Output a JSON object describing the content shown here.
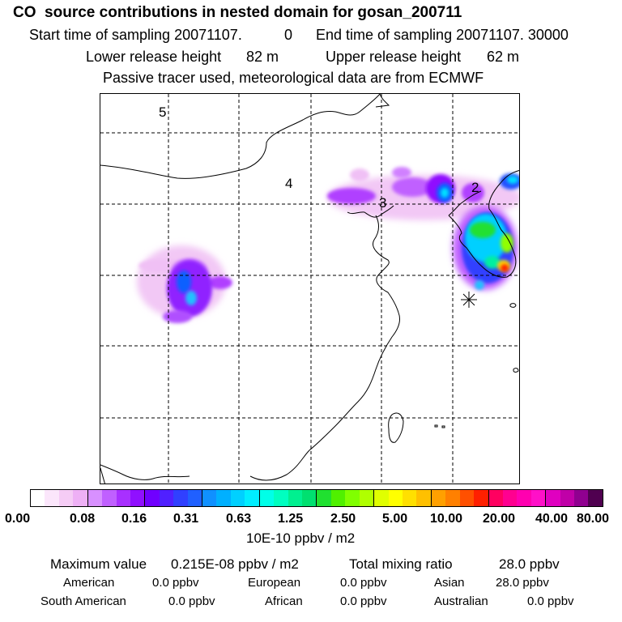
{
  "header": {
    "title": "CO  source contributions in nested domain for gosan_200711",
    "start_label": "Start time of sampling 20071107.",
    "start_value": "0",
    "end_label": "End time of sampling 20071107. 30000",
    "lower_label": "Lower release height",
    "lower_value": "82 m",
    "upper_label": "Upper release height",
    "upper_value": "62 m",
    "tracer_note": "Passive tracer used, meteorological data are from ECMWF"
  },
  "map": {
    "region_labels": [
      "5",
      "4",
      "3",
      "2"
    ],
    "receptor_marker": "gosan-asterisk"
  },
  "colorbar": {
    "ticks": [
      "0.00",
      "0.08",
      "0.16",
      "0.31",
      "0.63",
      "1.25",
      "2.50",
      "5.00",
      "10.00",
      "20.00",
      "40.00",
      "80.00"
    ],
    "units": "10E-10 ppbv / m2",
    "colors": [
      "#ffffff",
      "#fbe6fb",
      "#f5ccf5",
      "#eeb0f5",
      "#d890ff",
      "#c060ff",
      "#a830ff",
      "#9010ff",
      "#7000ff",
      "#5020ff",
      "#3040ff",
      "#2060ff",
      "#1090ff",
      "#00b0ff",
      "#00d0ff",
      "#00eeff",
      "#00ffe8",
      "#00ffc0",
      "#00f090",
      "#00e070",
      "#20e030",
      "#50f000",
      "#80ff00",
      "#b0ff00",
      "#e0ff00",
      "#ffff00",
      "#ffe000",
      "#ffc000",
      "#ffa000",
      "#ff8000",
      "#ff5000",
      "#ff2000",
      "#ff0060",
      "#ff0090",
      "#ff00b0",
      "#ff10c8",
      "#e000c0",
      "#c000a8",
      "#900090",
      "#500050"
    ]
  },
  "footer": {
    "max_label": "Maximum value",
    "max_value": "0.215E-08 ppbv / m2",
    "total_label": "Total mixing ratio",
    "total_value": "28.0 ppbv",
    "regions": [
      {
        "name": "American",
        "value": "0.0 ppbv"
      },
      {
        "name": "European",
        "value": "0.0 ppbv"
      },
      {
        "name": "Asian",
        "value": "28.0 ppbv"
      },
      {
        "name": "South American",
        "value": "0.0 ppbv"
      },
      {
        "name": "African",
        "value": "0.0 ppbv"
      },
      {
        "name": "Australian",
        "value": "0.0 ppbv"
      }
    ]
  }
}
